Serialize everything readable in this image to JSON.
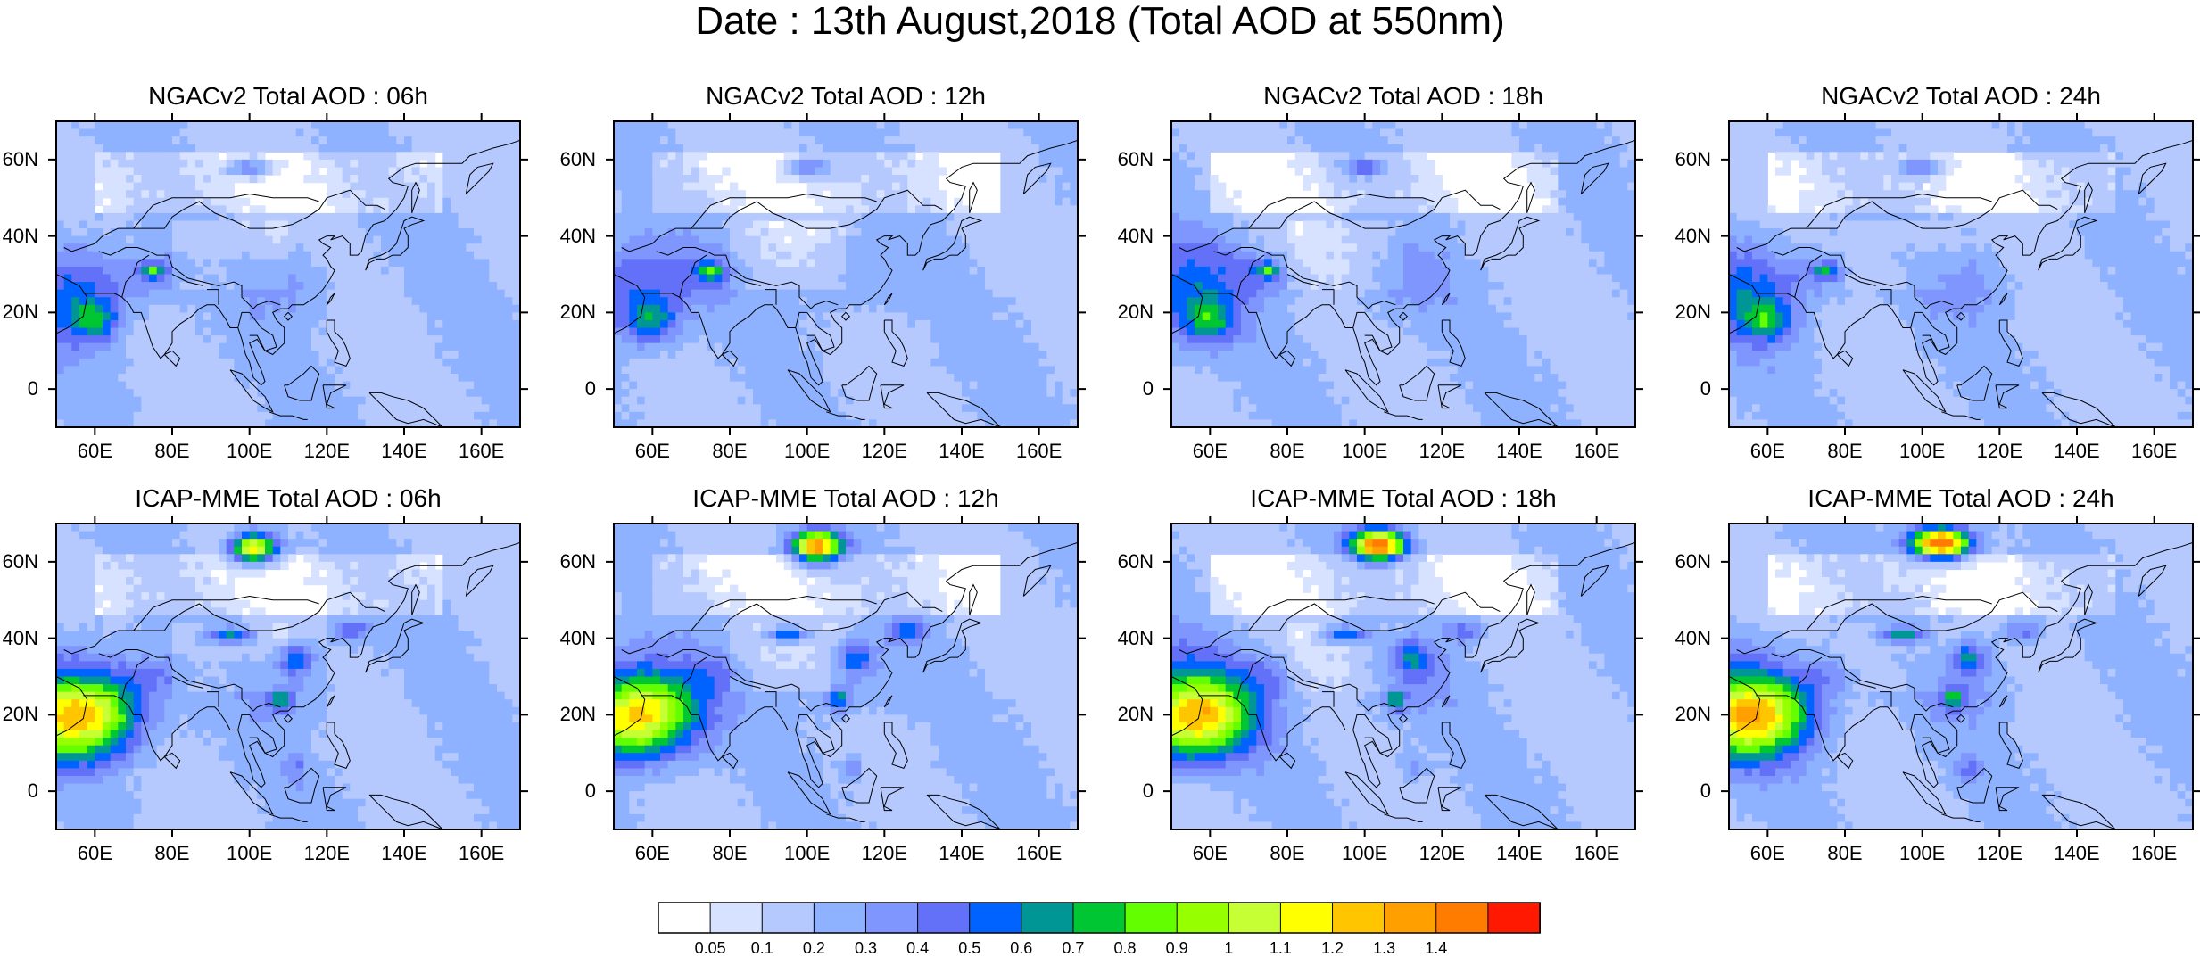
{
  "title": "Date : 13th August,2018 (Total AOD at 550nm)",
  "panels": [
    {
      "title": "NGACv2 Total AOD : 06h",
      "model": "ngac",
      "hour": 6
    },
    {
      "title": "NGACv2 Total AOD : 12h",
      "model": "ngac",
      "hour": 12
    },
    {
      "title": "NGACv2 Total AOD : 18h",
      "model": "ngac",
      "hour": 18
    },
    {
      "title": "NGACv2 Total AOD : 24h",
      "model": "ngac",
      "hour": 24
    },
    {
      "title": "ICAP-MME Total AOD : 06h",
      "model": "icap",
      "hour": 6
    },
    {
      "title": "ICAP-MME Total AOD : 12h",
      "model": "icap",
      "hour": 12
    },
    {
      "title": "ICAP-MME Total AOD : 18h",
      "model": "icap",
      "hour": 18
    },
    {
      "title": "ICAP-MME Total AOD : 24h",
      "model": "icap",
      "hour": 24
    }
  ],
  "axes": {
    "lon_range": [
      50,
      170
    ],
    "lat_range": [
      -10,
      70
    ],
    "lon_ticks": [
      "60E",
      "80E",
      "100E",
      "120E",
      "140E",
      "160E"
    ],
    "lat_ticks": [
      "0",
      "20N",
      "40N",
      "60N"
    ]
  },
  "colorbar": {
    "labels": [
      "0.05",
      "0.1",
      "0.2",
      "0.3",
      "0.4",
      "0.5",
      "0.6",
      "0.7",
      "0.8",
      "0.9",
      "1",
      "1.1",
      "1.2",
      "1.3",
      "1.4"
    ],
    "colors": [
      "#ffffff",
      "#d6e2ff",
      "#b5c9ff",
      "#8eb2ff",
      "#7f96ff",
      "#6370f8",
      "#0063ff",
      "#009696",
      "#00c633",
      "#63ff00",
      "#96ff00",
      "#c6ff33",
      "#ffff00",
      "#ffc600",
      "#ffa000",
      "#ff7c00",
      "#ff1900"
    ]
  }
}
